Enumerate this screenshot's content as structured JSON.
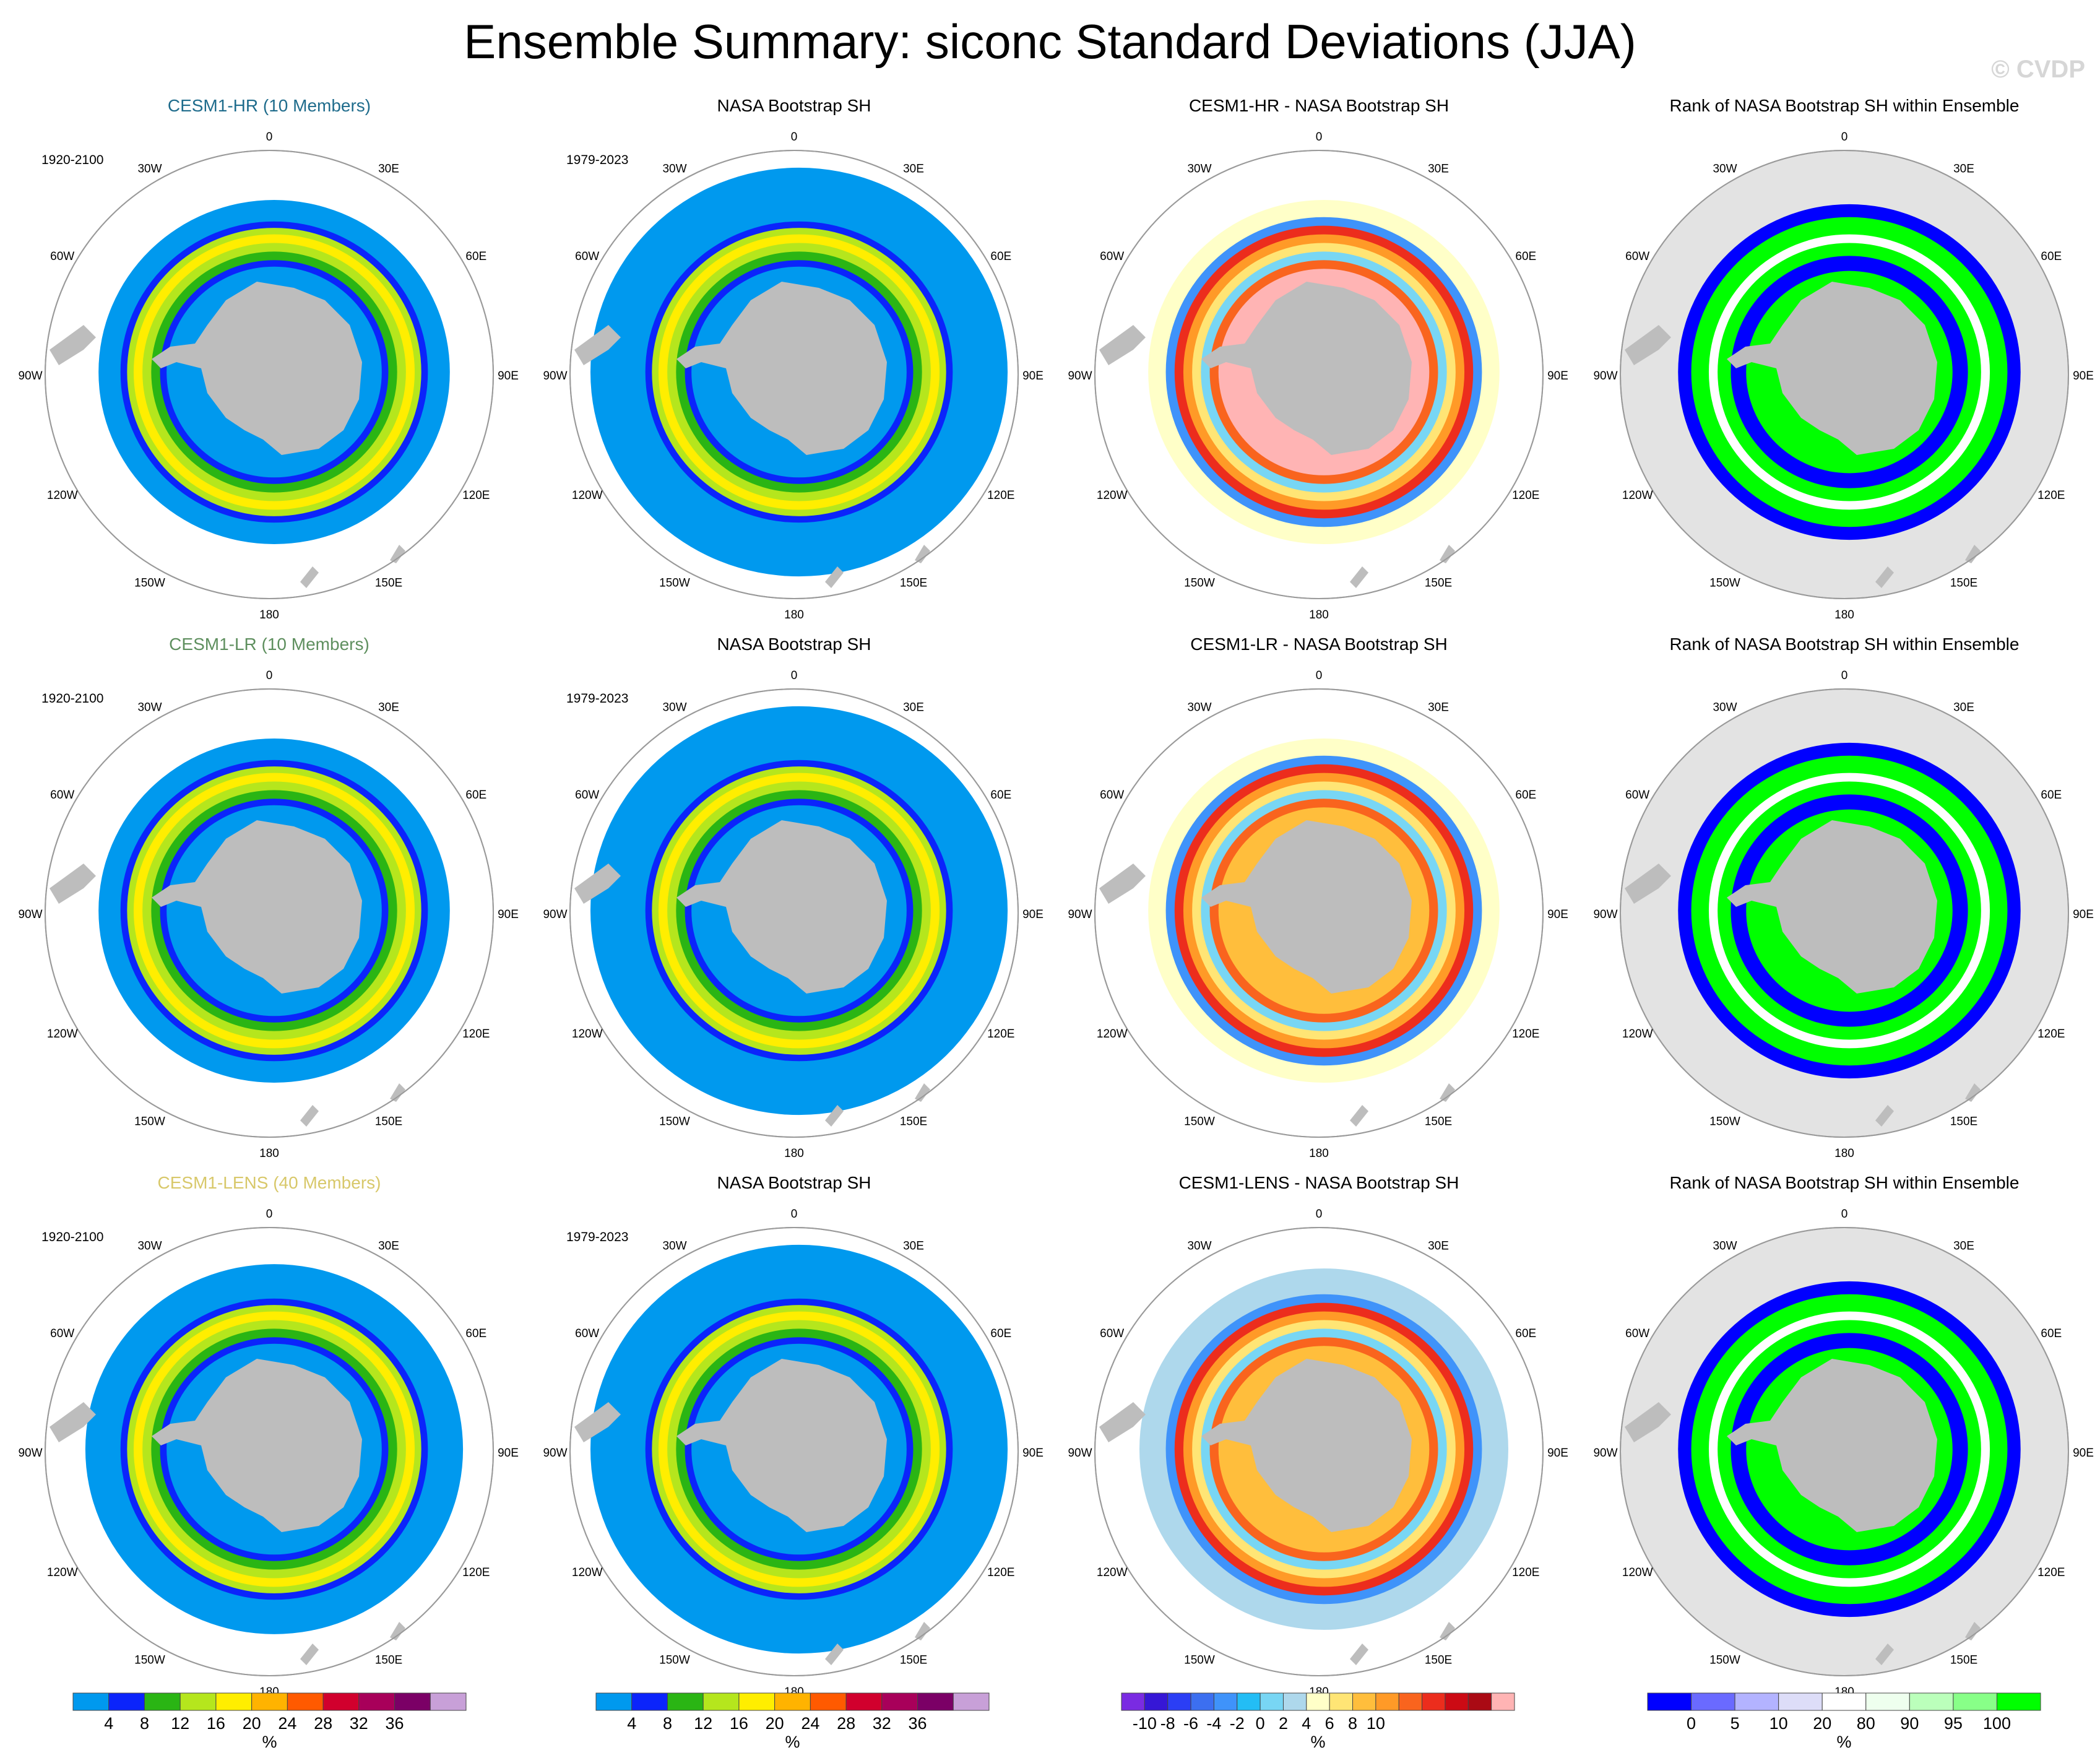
{
  "title": "Ensemble Summary: siconc Standard Deviations (JJA)",
  "watermark": "© CVDP",
  "longitude_labels": [
    "0",
    "30E",
    "60E",
    "90E",
    "120E",
    "150E",
    "180",
    "150W",
    "120W",
    "90W",
    "60W",
    "30W"
  ],
  "colors": {
    "ocean": "#ffffff",
    "land": "#bdbdbd",
    "rank_background": "#e3e3e3",
    "circle_outline": "#9a9a9a",
    "model_title_hr": "#1f6c8c",
    "model_title_lr": "#5e8f5e",
    "model_title_lens": "#d8c86a"
  },
  "rows": [
    {
      "model_title": "CESM1-HR (10 Members)",
      "model_period": "1920-2100",
      "obs_title": "NASA Bootstrap SH",
      "obs_period": "1979-2023",
      "diff_title": "CESM1-HR - NASA Bootstrap SH",
      "rank_title": "Rank of NASA Bootstrap SH within Ensemble"
    },
    {
      "model_title": "CESM1-LR (10 Members)",
      "model_period": "1920-2100",
      "obs_title": "NASA Bootstrap SH",
      "obs_period": "1979-2023",
      "diff_title": "CESM1-LR - NASA Bootstrap SH",
      "rank_title": "Rank of NASA Bootstrap SH within Ensemble"
    },
    {
      "model_title": "CESM1-LENS (40 Members)",
      "model_period": "1920-2100",
      "obs_title": "NASA Bootstrap SH",
      "obs_period": "1979-2023",
      "diff_title": "CESM1-LENS - NASA Bootstrap SH",
      "rank_title": "Rank of NASA Bootstrap SH within Ensemble"
    }
  ],
  "chart_data": [
    {
      "type": "heatmap",
      "name": "std-colorbar",
      "colors": [
        "#0099ee",
        "#0b24fb",
        "#2ab514",
        "#b5e61d",
        "#ffee00",
        "#ffb300",
        "#ff5a00",
        "#d1002d",
        "#a8005a",
        "#7b0066",
        "#c8a0d8"
      ],
      "tick_labels": [
        "4",
        "8",
        "12",
        "16",
        "20",
        "24",
        "28",
        "32",
        "36"
      ],
      "unit": "%"
    },
    {
      "type": "heatmap",
      "name": "diff-colorbar",
      "colors": [
        "#7a2be2",
        "#3617d6",
        "#2b3ef5",
        "#3c6ff0",
        "#3f93fa",
        "#23bdf5",
        "#78d6f4",
        "#aed8ec",
        "#ffffc8",
        "#ffe575",
        "#ffbe3c",
        "#ff9a27",
        "#f9641e",
        "#ec2d1d",
        "#cc0a14",
        "#aa0a14",
        "#ffb4b4"
      ],
      "tick_labels": [
        "-10",
        "-8",
        "-6",
        "-4",
        "-2",
        "0",
        "2",
        "4",
        "6",
        "8",
        "10"
      ],
      "unit": "%"
    },
    {
      "type": "heatmap",
      "name": "rank-colorbar",
      "colors": [
        "#0000ff",
        "#6a6aff",
        "#b3b3ff",
        "#ddddf8",
        "#ffffff",
        "#eeffee",
        "#bbffbb",
        "#88ff88",
        "#00ff00"
      ],
      "tick_labels": [
        "0",
        "5",
        "10",
        "20",
        "80",
        "90",
        "95",
        "100"
      ],
      "unit": "%"
    }
  ]
}
